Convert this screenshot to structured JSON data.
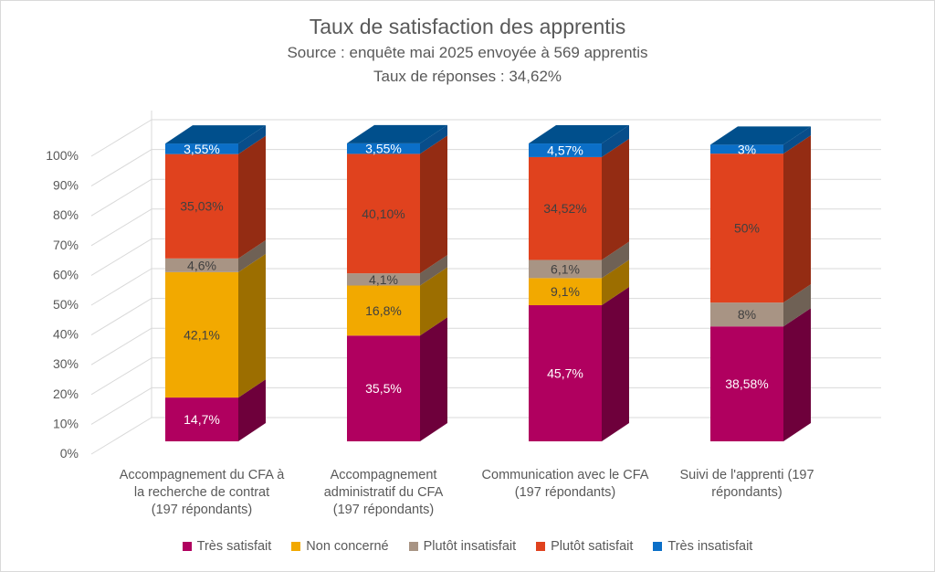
{
  "chart_data": {
    "type": "bar",
    "stacked": true,
    "title": "Taux de satisfaction des apprentis",
    "subtitle_1": "Source : enquête mai 2025 envoyée à  569 apprentis",
    "subtitle_2": "Taux de réponses : 34,62%",
    "categories": [
      "Accompagnement du CFA à la recherche de contrat (197 répondants)",
      "Accompagnement administratif du CFA (197 répondants)",
      "Communication avec le CFA (197 répondants)",
      "Suivi de l'apprenti (197 répondants)"
    ],
    "category_lines": [
      [
        "Accompagnement du CFA à",
        "la recherche de contrat",
        "(197 répondants)"
      ],
      [
        "Accompagnement",
        "administratif du CFA",
        "(197 répondants)"
      ],
      [
        "Communication avec le CFA",
        "(197 répondants)"
      ],
      [
        "Suivi de l'apprenti (197",
        "répondants)"
      ]
    ],
    "y_ticks": [
      "0%",
      "10%",
      "20%",
      "30%",
      "40%",
      "50%",
      "60%",
      "70%",
      "80%",
      "90%",
      "100%"
    ],
    "ylim": [
      0,
      100
    ],
    "legend_position": "bottom",
    "series": [
      {
        "name": "Très satisfait",
        "color": "#b0005f",
        "side": "#6e003b",
        "values": [
          14.7,
          35.5,
          45.7,
          38.58
        ],
        "labels": [
          "14,7%",
          "35,5%",
          "45,7%",
          "38,58%"
        ],
        "label_color": "#ffffff"
      },
      {
        "name": "Non concerné",
        "color": "#f2a900",
        "side": "#9c6e00",
        "values": [
          42.1,
          16.8,
          9.1,
          0
        ],
        "labels": [
          "42,1%",
          "16,8%",
          "9,1%",
          ""
        ],
        "label_color": "#404040"
      },
      {
        "name": "Plutôt insatisfait",
        "color": "#a89484",
        "side": "#6f6155",
        "values": [
          4.6,
          4.1,
          6.1,
          8
        ],
        "labels": [
          "4,6%",
          "4,1%",
          "6,1%",
          "8%"
        ],
        "label_color": "#404040"
      },
      {
        "name": "Plutôt satisfait",
        "color": "#e0421e",
        "side": "#942c13",
        "values": [
          35.03,
          40.1,
          34.52,
          50
        ],
        "labels": [
          "35,03%",
          "40,10%",
          "34,52%",
          "50%"
        ],
        "label_color": "#404040"
      },
      {
        "name": "Très insatisfait",
        "color": "#0b6fc8",
        "side": "#084d8a",
        "values": [
          3.55,
          3.55,
          4.57,
          3
        ],
        "labels": [
          "3,55%",
          "3,55%",
          "4,57%",
          "3%"
        ],
        "label_color": "#ffffff"
      }
    ],
    "top_face_color": "#004f8c"
  }
}
